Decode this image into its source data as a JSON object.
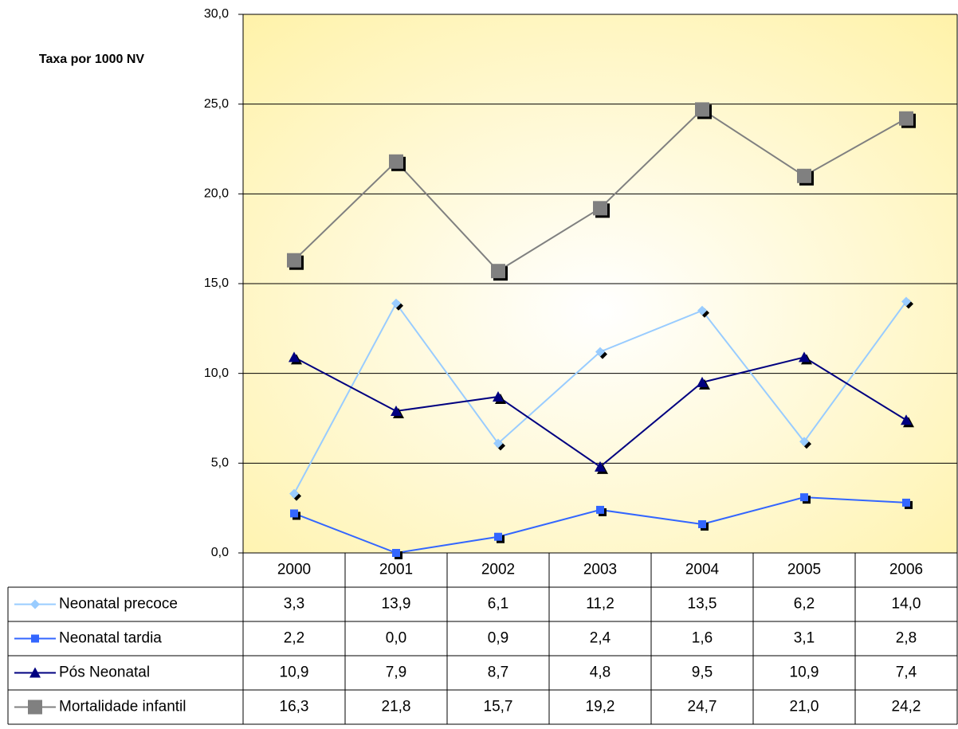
{
  "chart_data": {
    "type": "line",
    "y_label": "Taxa por 1000 NV",
    "categories": [
      "2000",
      "2001",
      "2002",
      "2003",
      "2004",
      "2005",
      "2006"
    ],
    "series": [
      {
        "name": "Neonatal precoce",
        "color": "#99ccff",
        "marker": "diamond",
        "values": [
          3.3,
          13.9,
          6.1,
          11.2,
          13.5,
          6.2,
          14.0
        ],
        "value_labels": [
          "3,3",
          "13,9",
          "6,1",
          "11,2",
          "13,5",
          "6,2",
          "14,0"
        ]
      },
      {
        "name": "Neonatal tardia",
        "color": "#3366ff",
        "marker": "square",
        "values": [
          2.2,
          0.0,
          0.9,
          2.4,
          1.6,
          3.1,
          2.8
        ],
        "value_labels": [
          "2,2",
          "0,0",
          "0,9",
          "2,4",
          "1,6",
          "3,1",
          "2,8"
        ]
      },
      {
        "name": "Pós Neonatal",
        "color": "#000080",
        "marker": "triangle",
        "values": [
          10.9,
          7.9,
          8.7,
          4.8,
          9.5,
          10.9,
          7.4
        ],
        "value_labels": [
          "10,9",
          "7,9",
          "8,7",
          "4,8",
          "9,5",
          "10,9",
          "7,4"
        ]
      },
      {
        "name": "Mortalidade infantil",
        "color": "#808080",
        "marker": "square-large",
        "values": [
          16.3,
          21.8,
          15.7,
          19.2,
          24.7,
          21.0,
          24.2
        ],
        "value_labels": [
          "16,3",
          "21,8",
          "15,7",
          "19,2",
          "24,7",
          "21,0",
          "24,2"
        ]
      }
    ],
    "ylim": [
      0,
      30
    ],
    "yticks": [
      {
        "value": 0,
        "label": "0,0"
      },
      {
        "value": 5,
        "label": "5,0"
      },
      {
        "value": 10,
        "label": "10,0"
      },
      {
        "value": 15,
        "label": "15,0"
      },
      {
        "value": 20,
        "label": "20,0"
      },
      {
        "value": 25,
        "label": "25,0"
      },
      {
        "value": 30,
        "label": "30,0"
      }
    ],
    "grid": true,
    "data_table": true
  }
}
